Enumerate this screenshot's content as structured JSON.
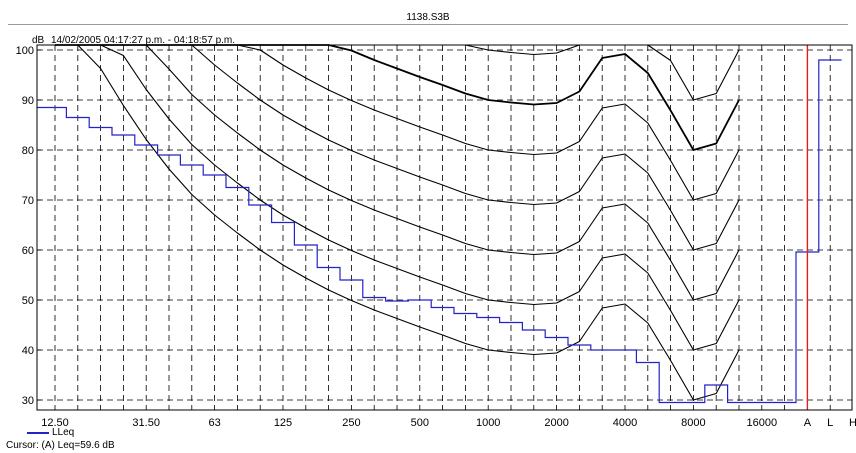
{
  "window": {
    "title": "1138.S3B"
  },
  "chart_data": {
    "type": "step",
    "ylabel": "dB",
    "subtitle": "14/02/2005 04:17:27 p.m. - 04:18:57 p.m.",
    "ylim": [
      28,
      101
    ],
    "yticks": [
      30,
      40,
      50,
      60,
      70,
      80,
      90,
      100
    ],
    "x_tick_labels": [
      "12.50",
      "31.50",
      "63",
      "125",
      "250",
      "500",
      "1000",
      "2000",
      "4000",
      "8000",
      "16000",
      "A",
      "L",
      "H"
    ],
    "grid": true,
    "bands": [
      "12.5",
      "16",
      "20",
      "25",
      "31.5",
      "40",
      "50",
      "63",
      "80",
      "100",
      "125",
      "160",
      "200",
      "250",
      "315",
      "400",
      "500",
      "630",
      "800",
      "1000",
      "1250",
      "1600",
      "2000",
      "2500",
      "3150",
      "4000",
      "5000",
      "6300",
      "8000",
      "10000",
      "12500",
      "16000",
      "20000",
      "A",
      "L"
    ],
    "series": [
      {
        "name": "LLeq",
        "color": "#2323c8",
        "values": [
          88.5,
          86.5,
          84.5,
          83,
          81,
          79,
          77,
          75,
          72.5,
          69,
          65.5,
          61,
          56.5,
          54,
          50.5,
          49.8,
          50,
          48.5,
          47.3,
          46.5,
          45.5,
          44,
          42.5,
          41,
          40,
          40,
          37.5,
          29.5,
          29.5,
          33,
          29.5,
          29.5,
          29.5,
          59.6,
          98
        ]
      }
    ],
    "contours": {
      "color": "#000000",
      "x_bands": [
        "12.5",
        "16",
        "20",
        "25",
        "31.5",
        "40",
        "50",
        "63",
        "80",
        "100",
        "125",
        "160",
        "200",
        "250",
        "315",
        "400",
        "500",
        "630",
        "800",
        "1000",
        "1250",
        "1600",
        "2000",
        "2500",
        "3150",
        "4000",
        "5000",
        "6300",
        "8000",
        "10000",
        "12500"
      ],
      "shape": [
        74.6,
        64.4,
        56.3,
        48.9,
        42.1,
        36.2,
        31.1,
        27.0,
        23.4,
        20.0,
        17.0,
        14.4,
        12.0,
        9.9,
        8.0,
        6.3,
        4.6,
        3.0,
        1.3,
        0.0,
        -0.5,
        -0.9,
        -0.6,
        1.7,
        8.4,
        9.2,
        5.4,
        -2.1,
        -10.0,
        -8.7,
        0.0
      ],
      "levels": [
        40,
        50,
        60,
        70,
        80,
        90,
        100
      ],
      "bold_levels": [
        90
      ]
    },
    "cursor": {
      "band": "A",
      "color": "#e02020"
    },
    "legend": [
      "LLeq"
    ],
    "legend_position": "bottom-left"
  },
  "footer": {
    "cursor_readout": "Cursor: (A)  Leq=59.6 dB"
  }
}
